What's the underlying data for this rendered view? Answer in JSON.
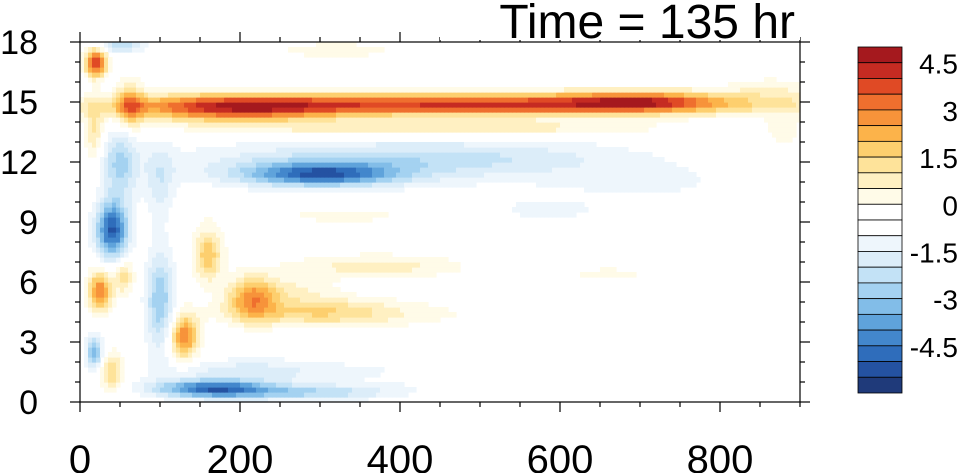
{
  "chart_data": {
    "type": "heatmap",
    "title": "Time = 135 hr",
    "xlabel": "",
    "ylabel": "",
    "xlim": [
      0,
      900
    ],
    "ylim": [
      0,
      18
    ],
    "x_ticks": [
      0,
      200,
      400,
      600,
      800
    ],
    "y_ticks": [
      0,
      3,
      6,
      9,
      12,
      15,
      18
    ],
    "colorbar": {
      "levels": [
        -5.5,
        -5,
        -4.5,
        -4,
        -3.5,
        -3,
        -2.5,
        -2,
        -1.5,
        -1,
        -0.5,
        0,
        0.5,
        1,
        1.5,
        2,
        2.5,
        3,
        3.5,
        4,
        4.5,
        5,
        5.5
      ],
      "colors": [
        "#1f3a7a",
        "#2452a2",
        "#2f6dbb",
        "#4387cc",
        "#5fa3db",
        "#82bde8",
        "#a4d2f1",
        "#c3e2f6",
        "#dcedf9",
        "#eef6fc",
        "#ffffff",
        "#ffffff",
        "#fffbe8",
        "#fff0c2",
        "#fee39a",
        "#fdcf6e",
        "#fcb34a",
        "#f7933a",
        "#ef6f2e",
        "#e04a25",
        "#c52b22",
        "#a5191e"
      ],
      "labels": [
        {
          "value": 4.5,
          "text": "4.5"
        },
        {
          "value": 3,
          "text": "3"
        },
        {
          "value": 1.5,
          "text": "1.5"
        },
        {
          "value": 0,
          "text": "0"
        },
        {
          "value": -1.5,
          "text": "-1.5"
        },
        {
          "value": -3,
          "text": "-3"
        },
        {
          "value": -4.5,
          "text": "-4.5"
        }
      ]
    },
    "features": [
      {
        "x": 500,
        "y": 14.9,
        "sx": 340,
        "sy": 0.55,
        "v": 4.6
      },
      {
        "x": 190,
        "y": 14.7,
        "sx": 130,
        "sy": 0.7,
        "v": 3.5
      },
      {
        "x": 700,
        "y": 15.1,
        "sx": 90,
        "sy": 0.5,
        "v": 2.5
      },
      {
        "x": 860,
        "y": 15.7,
        "sx": 60,
        "sy": 0.6,
        "v": 0.8
      },
      {
        "x": 450,
        "y": 13.7,
        "sx": 250,
        "sy": 0.4,
        "v": 1.6
      },
      {
        "x": 300,
        "y": 11.4,
        "sx": 90,
        "sy": 0.55,
        "v": -3.5
      },
      {
        "x": 320,
        "y": 11.9,
        "sx": 200,
        "sy": 1.1,
        "v": -1.6
      },
      {
        "x": 520,
        "y": 12.3,
        "sx": 180,
        "sy": 0.9,
        "v": -1.0
      },
      {
        "x": 700,
        "y": 11.0,
        "sx": 150,
        "sy": 1.2,
        "v": -0.6
      },
      {
        "x": 330,
        "y": 9.3,
        "sx": 140,
        "sy": 0.5,
        "v": 0.6
      },
      {
        "x": 580,
        "y": 9.6,
        "sx": 60,
        "sy": 0.5,
        "v": -0.8
      },
      {
        "x": 370,
        "y": 6.8,
        "sx": 110,
        "sy": 0.6,
        "v": 1.3
      },
      {
        "x": 660,
        "y": 6.4,
        "sx": 60,
        "sy": 0.4,
        "v": 0.7
      },
      {
        "x": 300,
        "y": 4.5,
        "sx": 110,
        "sy": 0.7,
        "v": 2.0
      },
      {
        "x": 600,
        "y": 4.3,
        "sx": 200,
        "sy": 0.9,
        "v": 0.5
      },
      {
        "x": 260,
        "y": 5.6,
        "sx": 60,
        "sy": 0.7,
        "v": 1.0
      },
      {
        "x": 215,
        "y": 5.2,
        "sx": 30,
        "sy": 1.1,
        "v": 2.7
      },
      {
        "x": 160,
        "y": 7.4,
        "sx": 18,
        "sy": 1.3,
        "v": 2.4
      },
      {
        "x": 130,
        "y": 3.3,
        "sx": 18,
        "sy": 1.1,
        "v": 3.5
      },
      {
        "x": 210,
        "y": 1.6,
        "sx": 100,
        "sy": 0.55,
        "v": -1.2
      },
      {
        "x": 165,
        "y": 0.7,
        "sx": 70,
        "sy": 0.45,
        "v": -4.0
      },
      {
        "x": 280,
        "y": 0.5,
        "sx": 110,
        "sy": 0.4,
        "v": -2.0
      },
      {
        "x": 450,
        "y": 1.5,
        "sx": 200,
        "sy": 0.8,
        "v": -0.5
      },
      {
        "x": 40,
        "y": 8.6,
        "sx": 20,
        "sy": 1.4,
        "v": -4.5
      },
      {
        "x": 50,
        "y": 12.0,
        "sx": 22,
        "sy": 2.0,
        "v": -2.0
      },
      {
        "x": 62,
        "y": 14.8,
        "sx": 18,
        "sy": 1.2,
        "v": 2.4
      },
      {
        "x": 20,
        "y": 17.0,
        "sx": 14,
        "sy": 0.7,
        "v": 4.5
      },
      {
        "x": 18,
        "y": 13.5,
        "sx": 12,
        "sy": 1.5,
        "v": 1.6
      },
      {
        "x": 25,
        "y": 5.6,
        "sx": 15,
        "sy": 1.0,
        "v": 3.5
      },
      {
        "x": 55,
        "y": 6.3,
        "sx": 12,
        "sy": 0.8,
        "v": 2.0
      },
      {
        "x": 18,
        "y": 2.5,
        "sx": 10,
        "sy": 0.8,
        "v": -3.0
      },
      {
        "x": 40,
        "y": 1.5,
        "sx": 15,
        "sy": 1.0,
        "v": 2.0
      },
      {
        "x": 100,
        "y": 5.0,
        "sx": 18,
        "sy": 2.5,
        "v": -2.5
      },
      {
        "x": 100,
        "y": 11.0,
        "sx": 18,
        "sy": 2.0,
        "v": -1.2
      },
      {
        "x": 50,
        "y": 17.9,
        "sx": 30,
        "sy": 0.4,
        "v": -2.0
      },
      {
        "x": 320,
        "y": 17.6,
        "sx": 80,
        "sy": 0.4,
        "v": 0.9
      },
      {
        "x": 600,
        "y": 16.5,
        "sx": 150,
        "sy": 0.3,
        "v": -0.5
      },
      {
        "x": 880,
        "y": 13.5,
        "sx": 30,
        "sy": 1.5,
        "v": 0.6
      }
    ]
  }
}
